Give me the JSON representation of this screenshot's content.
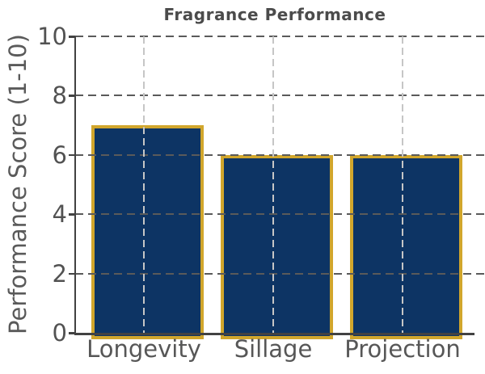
{
  "chart_data": {
    "type": "bar",
    "title": "Fragrance Performance",
    "ylabel": "Performance Score (1-10)",
    "xlabel": "",
    "categories": [
      "Longevity",
      "Sillage",
      "Projection"
    ],
    "values": [
      7,
      6,
      6
    ],
    "ylim": [
      0,
      10
    ],
    "yticks": [
      0,
      2,
      4,
      6,
      8,
      10
    ],
    "grid": "both-dashed",
    "legend_position": "none",
    "colors": {
      "bar_fill": "#0d3464",
      "bar_edge": "#d1a62c",
      "h_grid": "#5a5a5a",
      "v_grid": "#c6c6c6",
      "axis": "#424242",
      "title_text": "#4b4b4b",
      "tick_text": "#525252",
      "category_text": "#575757",
      "ylabel_text": "#5a5a5a"
    }
  }
}
